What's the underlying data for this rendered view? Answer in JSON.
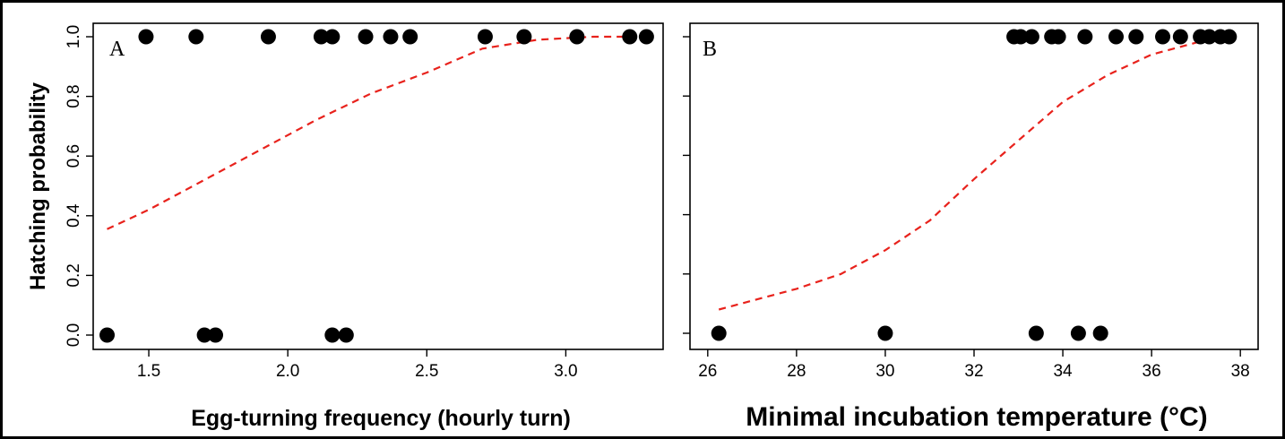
{
  "chart_data": [
    {
      "type": "scatter",
      "panel_label": "A",
      "xlabel": "Egg-turning frequency (hourly turn)",
      "ylabel": "Hatching probability",
      "xlim": [
        1.3,
        3.35
      ],
      "ylim": [
        0,
        1
      ],
      "xticks": [
        1.5,
        2.0,
        2.5,
        3.0
      ],
      "xtick_labels": [
        "1.5",
        "2.0",
        "2.5",
        "3.0"
      ],
      "yticks": [
        0.0,
        0.2,
        0.4,
        0.6,
        0.8,
        1.0
      ],
      "ytick_labels": [
        "0.0",
        "0.2",
        "0.4",
        "0.6",
        "0.8",
        "1.0"
      ],
      "grid": false,
      "series": [
        {
          "points": [
            [
              1.35,
              0
            ],
            [
              1.49,
              1
            ],
            [
              1.67,
              1
            ],
            [
              1.7,
              0
            ],
            [
              1.74,
              0
            ],
            [
              1.93,
              1
            ],
            [
              2.12,
              1
            ],
            [
              2.16,
              0
            ],
            [
              2.16,
              1
            ],
            [
              2.21,
              0
            ],
            [
              2.28,
              1
            ],
            [
              2.37,
              1
            ],
            [
              2.44,
              1
            ],
            [
              2.71,
              1
            ],
            [
              2.85,
              1
            ],
            [
              3.04,
              1
            ],
            [
              3.23,
              1
            ],
            [
              3.29,
              1
            ]
          ]
        }
      ],
      "fit_curve": {
        "style": "dashed",
        "color": "#e8221c",
        "points": [
          [
            1.35,
            0.355
          ],
          [
            1.5,
            0.42
          ],
          [
            1.7,
            0.52
          ],
          [
            1.9,
            0.62
          ],
          [
            2.1,
            0.72
          ],
          [
            2.3,
            0.81
          ],
          [
            2.5,
            0.88
          ],
          [
            2.7,
            0.96
          ],
          [
            2.9,
            0.99
          ],
          [
            3.1,
            1.0
          ],
          [
            3.29,
            1.0
          ]
        ]
      }
    },
    {
      "type": "scatter",
      "panel_label": "B",
      "xlabel": "Minimal incubation temperature (°C)",
      "ylabel": "",
      "xlim": [
        25.6,
        38.4
      ],
      "ylim": [
        0,
        1
      ],
      "xticks": [
        26,
        28,
        30,
        32,
        34,
        36,
        38
      ],
      "xtick_labels": [
        "26",
        "28",
        "30",
        "32",
        "34",
        "36",
        "38"
      ],
      "yticks": [
        0.0,
        0.2,
        0.4,
        0.6,
        0.8,
        1.0
      ],
      "ytick_labels": [],
      "grid": false,
      "series": [
        {
          "points": [
            [
              26.25,
              0
            ],
            [
              30.0,
              0
            ],
            [
              32.9,
              1
            ],
            [
              33.05,
              1
            ],
            [
              33.3,
              1
            ],
            [
              33.4,
              0
            ],
            [
              33.75,
              1
            ],
            [
              33.9,
              1
            ],
            [
              34.35,
              0
            ],
            [
              34.5,
              1
            ],
            [
              34.85,
              0
            ],
            [
              35.2,
              1
            ],
            [
              35.65,
              1
            ],
            [
              36.25,
              1
            ],
            [
              36.65,
              1
            ],
            [
              37.1,
              1
            ],
            [
              37.3,
              1
            ],
            [
              37.55,
              1
            ],
            [
              37.75,
              1
            ]
          ]
        }
      ],
      "fit_curve": {
        "style": "dashed",
        "color": "#e8221c",
        "points": [
          [
            26.25,
            0.08
          ],
          [
            27,
            0.11
          ],
          [
            28,
            0.15
          ],
          [
            29,
            0.2
          ],
          [
            30,
            0.28
          ],
          [
            31,
            0.38
          ],
          [
            32,
            0.52
          ],
          [
            33,
            0.65
          ],
          [
            34,
            0.78
          ],
          [
            35,
            0.87
          ],
          [
            36,
            0.94
          ],
          [
            37,
            0.98
          ],
          [
            37.5,
            0.995
          ]
        ]
      }
    }
  ]
}
